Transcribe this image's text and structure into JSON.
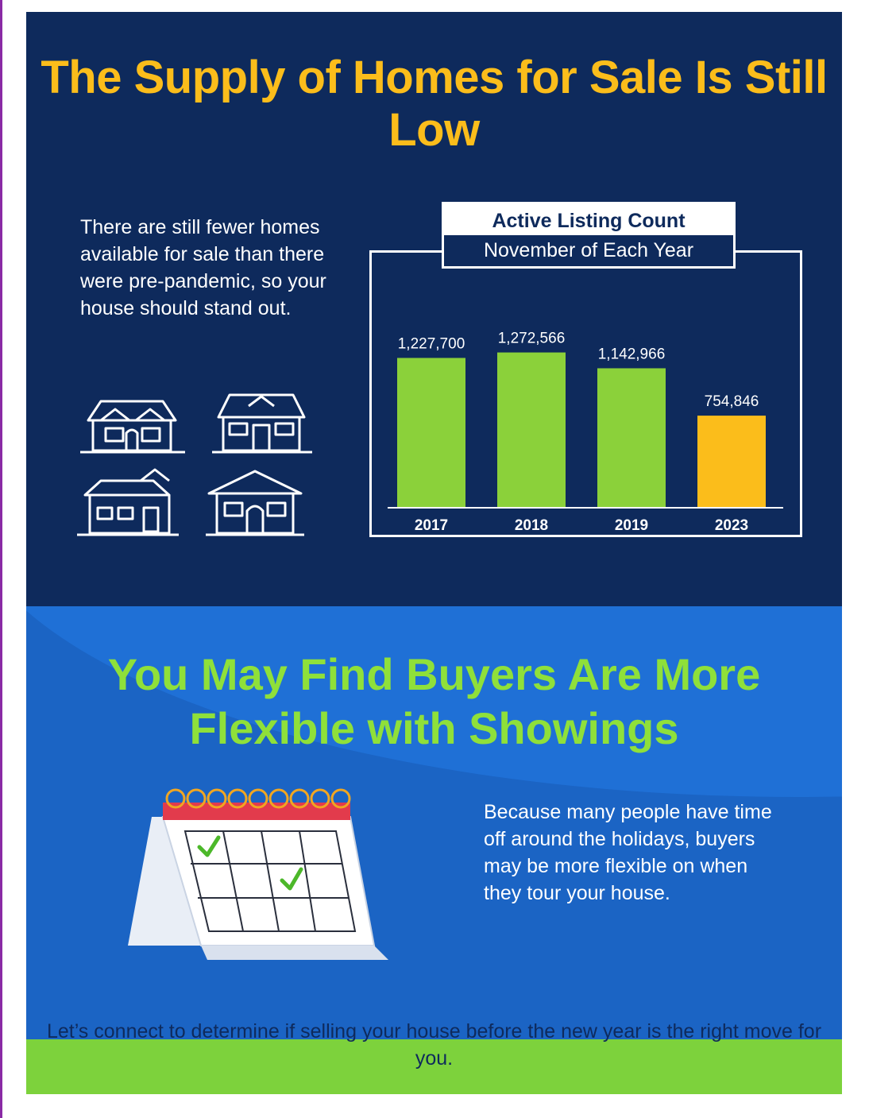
{
  "headline": "The Supply of Homes for Sale Is Still Low",
  "intro_text": "There are still fewer homes available for sale than there were pre-pandemic, so your house should stand out.",
  "colors": {
    "navy": "#0e2a5c",
    "blue": "#1b64c4",
    "yellow": "#fbbd1b",
    "green": "#7dd23c",
    "bar_green": "#8bd13a",
    "bar_highlight": "#fbbd1b"
  },
  "chart_data": {
    "type": "bar",
    "title": "Active Listing Count",
    "subtitle": "November of Each Year",
    "categories": [
      "2017",
      "2018",
      "2019",
      "2023"
    ],
    "values": [
      1227700,
      1272566,
      1142966,
      754846
    ],
    "data_labels": [
      "1,227,700",
      "1,272,566",
      "1,142,966",
      "754,846"
    ],
    "highlight_category": "2023",
    "ylim": [
      0,
      1400000
    ],
    "grid": false,
    "legend": "none"
  },
  "section2_heading": "You May Find Buyers Are More Flexible with Showings",
  "section2_text": "Because many people have time off around the holidays, buyers may be more flexible on when they tour your house.",
  "cta_text": "Let’s connect to determine if selling your house before the new year is the right move for you.",
  "icons": [
    "house-icon",
    "house-icon",
    "house-icon",
    "house-icon",
    "calendar-icon",
    "checkmark-icon"
  ]
}
